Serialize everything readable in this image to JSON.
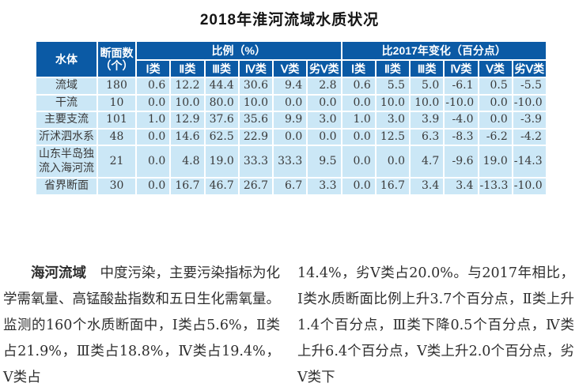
{
  "title": "2018年淮河流域水质状况",
  "table": {
    "header": {
      "water_body": "水体",
      "section_count": "断面数\n（个）",
      "ratio_group": "比例（%）",
      "change_group": "比2017年变化（百分点）",
      "class_labels": [
        "Ⅰ类",
        "Ⅱ类",
        "Ⅲ类",
        "Ⅳ类",
        "Ⅴ类",
        "劣Ⅴ类"
      ]
    },
    "rows": [
      {
        "label": "流域",
        "count": "180",
        "ratio": [
          "0.6",
          "12.2",
          "44.4",
          "30.6",
          "9.4",
          "2.8"
        ],
        "change": [
          "0.6",
          "5.5",
          "5.0",
          "-6.1",
          "0.5",
          "-5.5"
        ]
      },
      {
        "label": "干流",
        "count": "10",
        "ratio": [
          "0.0",
          "10.0",
          "80.0",
          "10.0",
          "0.0",
          "0.0"
        ],
        "change": [
          "0.0",
          "10.0",
          "10.0",
          "-10.0",
          "0.0",
          "-10.0"
        ]
      },
      {
        "label": "主要支流",
        "count": "101",
        "ratio": [
          "1.0",
          "12.9",
          "37.6",
          "35.6",
          "9.9",
          "3.0"
        ],
        "change": [
          "1.0",
          "3.0",
          "3.9",
          "-4.0",
          "0.0",
          "-3.9"
        ]
      },
      {
        "label": "沂沭泗水系",
        "count": "48",
        "ratio": [
          "0.0",
          "14.6",
          "62.5",
          "22.9",
          "0.0",
          "0.0"
        ],
        "change": [
          "0.0",
          "12.5",
          "6.3",
          "-8.3",
          "-6.2",
          "-4.2"
        ]
      },
      {
        "label": "山东半岛独\n流入海河流",
        "count": "21",
        "ratio": [
          "0.0",
          "4.8",
          "19.0",
          "33.3",
          "33.3",
          "9.5"
        ],
        "change": [
          "0.0",
          "0.0",
          "4.7",
          "-9.6",
          "19.0",
          "-14.3"
        ]
      },
      {
        "label": "省界断面",
        "count": "30",
        "ratio": [
          "0.0",
          "16.7",
          "46.7",
          "26.7",
          "6.7",
          "3.3"
        ],
        "change": [
          "0.0",
          "16.7",
          "3.4",
          "3.4",
          "-13.3",
          "-10.0"
        ]
      }
    ]
  },
  "body_text": {
    "left_lead": "海河流域",
    "left_rest": "　中度污染，主要污染指标为化学需氧量、高锰酸盐指数和五日生化需氧量。监测的160个水质断面中，Ⅰ类占5.6%，Ⅱ类占21.9%，Ⅲ类占18.8%，Ⅳ类占19.4%，Ⅴ类占",
    "right": "14.4%，劣Ⅴ类占20.0%。与2017年相比，Ⅰ类水质断面比例上升3.7个百分点，Ⅱ类上升1.4个百分点，Ⅲ类下降0.5个百分点，Ⅳ类上升6.4个百分点，Ⅴ类上升2.0个百分点，劣Ⅴ类下"
  },
  "colors": {
    "header_bg": "#0b5aa5",
    "row_bg": "#cbe7f6",
    "grid_line": "#ffffff",
    "header_text": "#ffffff",
    "body_text_color": "#3a3a3a"
  }
}
